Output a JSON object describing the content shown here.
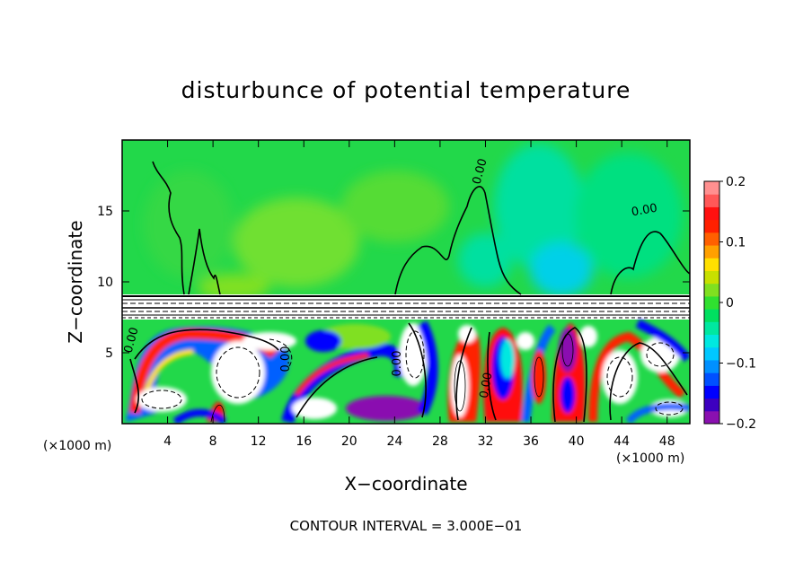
{
  "chart_data": {
    "type": "heatmap",
    "title": "disturbunce of potential temperature",
    "xlabel": "X−coordinate",
    "ylabel": "Z−coordinate",
    "x_unit": "(×1000 m)",
    "footer": "CONTOUR INTERVAL = 3.000E−01",
    "x_range": [
      0,
      50
    ],
    "y_range": [
      0,
      20
    ],
    "x_ticks": [
      4,
      8,
      12,
      16,
      20,
      24,
      28,
      32,
      36,
      40,
      44,
      48
    ],
    "x_tick_labels": [
      "4",
      "8",
      "12",
      "16",
      "20",
      "24",
      "28",
      "32",
      "36",
      "40",
      "44",
      "48"
    ],
    "y_ticks": [
      5,
      10,
      15
    ],
    "y_tick_labels": [
      "5",
      "10",
      "15"
    ],
    "colorbar": {
      "range": [
        -0.2,
        0.2
      ],
      "tick_values": [
        -0.2,
        -0.1,
        0,
        0.1,
        0.2
      ],
      "tick_labels": [
        "−0.2",
        "−0.1",
        "0",
        "0.1",
        "0.2"
      ],
      "colors": [
        "#8a10b0",
        "#3d00c0",
        "#0000ff",
        "#0050ff",
        "#0090ff",
        "#00c8ff",
        "#00e8e0",
        "#00e8a0",
        "#00e060",
        "#30e030",
        "#80e020",
        "#c8e000",
        "#ffe000",
        "#ffa000",
        "#ff6000",
        "#ff2000",
        "#ff1010",
        "#ff5858",
        "#ff9090"
      ]
    },
    "contour_labels": [
      "0.00",
      "0.00",
      "0.00",
      "0.00",
      "0.00",
      "0.00"
    ]
  }
}
